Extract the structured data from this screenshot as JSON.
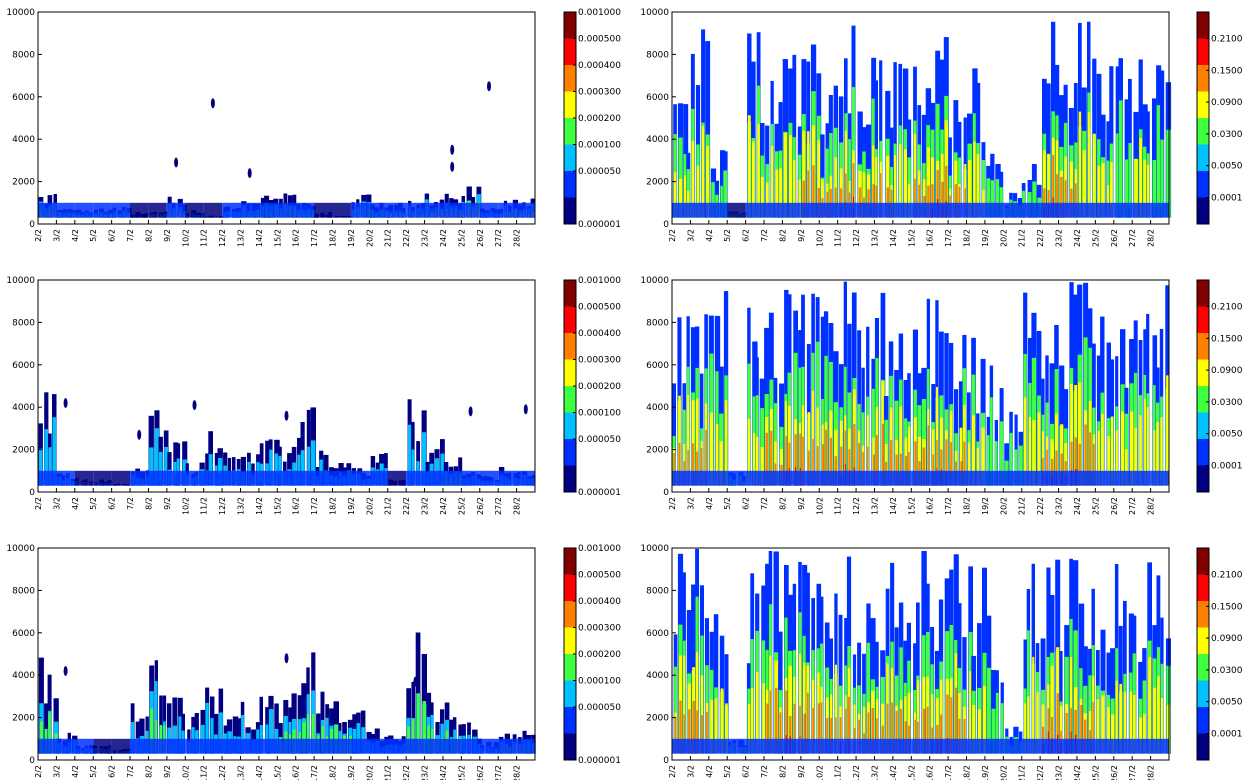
{
  "chart_data": [
    {
      "type": "heatmap",
      "name": "top-left",
      "colorbar": "A",
      "x": [
        "2/2",
        "3/2",
        "4/2",
        "5/2",
        "6/2",
        "7/2",
        "8/2",
        "9/2",
        "10/2",
        "11/2",
        "12/2",
        "13/2",
        "14/2",
        "15/2",
        "16/2",
        "17/2",
        "18/2",
        "19/2",
        "20/2",
        "21/2",
        "22/2",
        "23/2",
        "24/2",
        "25/2",
        "26/2",
        "27/2",
        "28/2"
      ],
      "ylim": [
        0,
        10000
      ],
      "yticks": [
        0,
        2000,
        4000,
        6000,
        8000,
        10000
      ],
      "column_tops": [
        1500,
        900,
        800,
        900,
        800,
        600,
        600,
        1500,
        700,
        400,
        900,
        1300,
        1400,
        1500,
        1400,
        600,
        400,
        1500,
        1000,
        1200,
        1400,
        1500,
        1600,
        2000,
        800,
        1200,
        1300
      ],
      "intensity": [
        3,
        2,
        2,
        2,
        2,
        0,
        2,
        3,
        1,
        0,
        1,
        2,
        2,
        2,
        2,
        0,
        0,
        2,
        2,
        3,
        3,
        3,
        4,
        3,
        1,
        4,
        4
      ],
      "specks": [
        [
          9,
          5700
        ],
        [
          22,
          3500
        ],
        [
          24,
          6500
        ],
        [
          7,
          2900
        ],
        [
          11,
          2400
        ],
        [
          22,
          2700
        ]
      ]
    },
    {
      "type": "heatmap",
      "name": "top-right",
      "colorbar": "B",
      "x": [
        "2/2",
        "3/2",
        "4/2",
        "5/2",
        "6/2",
        "7/2",
        "8/2",
        "9/2",
        "10/2",
        "11/2",
        "12/2",
        "13/2",
        "14/2",
        "15/2",
        "16/2",
        "17/2",
        "18/2",
        "19/2",
        "20/2",
        "21/2",
        "22/2",
        "23/2",
        "24/2",
        "25/2",
        "26/2",
        "27/2",
        "28/2"
      ],
      "ylim": [
        0,
        10000
      ],
      "yticks": [
        0,
        2000,
        4000,
        6000,
        8000,
        10000
      ],
      "column_tops": [
        6000,
        9500,
        3500,
        600,
        9500,
        9000,
        8500,
        9500,
        9000,
        10000,
        9500,
        9000,
        8000,
        9000,
        10000,
        8500,
        7500,
        3500,
        1500,
        3500,
        10000,
        8500,
        10000,
        10000,
        9500,
        8000,
        9500
      ],
      "intensity": [
        2,
        2,
        1,
        1,
        2,
        2,
        2,
        3,
        3,
        4,
        3,
        3,
        2,
        3,
        4,
        3,
        2,
        1,
        1,
        1,
        4,
        3,
        2,
        2,
        1,
        2,
        1
      ],
      "specks": []
    },
    {
      "type": "heatmap",
      "name": "middle-left",
      "colorbar": "A",
      "x": [
        "2/2",
        "3/2",
        "4/2",
        "5/2",
        "6/2",
        "7/2",
        "8/2",
        "9/2",
        "10/2",
        "11/2",
        "12/2",
        "13/2",
        "14/2",
        "15/2",
        "16/2",
        "17/2",
        "18/2",
        "19/2",
        "20/2",
        "21/2",
        "22/2",
        "23/2",
        "24/2",
        "25/2",
        "26/2",
        "27/2",
        "28/2"
      ],
      "ylim": [
        0,
        10000
      ],
      "yticks": [
        0,
        2000,
        4000,
        6000,
        8000,
        10000
      ],
      "column_tops": [
        4800,
        900,
        700,
        600,
        400,
        1200,
        4500,
        2500,
        1500,
        3500,
        2200,
        2000,
        2500,
        2500,
        4800,
        2000,
        1500,
        1200,
        2000,
        600,
        4500,
        2500,
        1800,
        1200,
        800,
        1200,
        1000
      ],
      "intensity": [
        1,
        1,
        1,
        1,
        0,
        1,
        1,
        1,
        1,
        1,
        1,
        1,
        1,
        1,
        1,
        1,
        1,
        1,
        1,
        0,
        1,
        1,
        2,
        1,
        1,
        1,
        1
      ],
      "specks": [
        [
          1,
          4200
        ],
        [
          5,
          2700
        ],
        [
          8,
          4100
        ],
        [
          13,
          3600
        ],
        [
          23,
          3800
        ],
        [
          26,
          3900
        ]
      ]
    },
    {
      "type": "heatmap",
      "name": "middle-right",
      "colorbar": "B",
      "x": [
        "2/2",
        "3/2",
        "4/2",
        "5/2",
        "6/2",
        "7/2",
        "8/2",
        "9/2",
        "10/2",
        "11/2",
        "12/2",
        "13/2",
        "14/2",
        "15/2",
        "16/2",
        "17/2",
        "18/2",
        "19/2",
        "20/2",
        "21/2",
        "22/2",
        "23/2",
        "24/2",
        "25/2",
        "26/2",
        "27/2",
        "28/2"
      ],
      "ylim": [
        0,
        10000
      ],
      "yticks": [
        0,
        2000,
        4000,
        6000,
        8000,
        10000
      ],
      "column_tops": [
        9500,
        10000,
        9500,
        1000,
        9000,
        9500,
        10000,
        9500,
        10000,
        10000,
        10000,
        9500,
        10000,
        9500,
        10000,
        9500,
        7500,
        6000,
        4000,
        10000,
        10000,
        10000,
        10000,
        9500,
        9500,
        9500,
        10000
      ],
      "intensity": [
        3,
        3,
        2,
        1,
        2,
        3,
        4,
        3,
        3,
        4,
        3,
        3,
        3,
        3,
        4,
        3,
        2,
        1,
        1,
        2,
        4,
        4,
        3,
        2,
        2,
        2,
        2
      ],
      "specks": []
    },
    {
      "type": "heatmap",
      "name": "bottom-left",
      "colorbar": "A",
      "x": [
        "2/2",
        "3/2",
        "4/2",
        "5/2",
        "6/2",
        "7/2",
        "8/2",
        "9/2",
        "10/2",
        "11/2",
        "12/2",
        "13/2",
        "14/2",
        "15/2",
        "16/2",
        "17/2",
        "18/2",
        "19/2",
        "20/2",
        "21/2",
        "22/2",
        "23/2",
        "24/2",
        "25/2",
        "26/2",
        "27/2",
        "28/2"
      ],
      "ylim": [
        0,
        10000
      ],
      "yticks": [
        0,
        2000,
        4000,
        6000,
        8000,
        10000
      ],
      "column_tops": [
        5200,
        1500,
        800,
        700,
        600,
        2800,
        5400,
        3000,
        2500,
        3500,
        3000,
        2800,
        3500,
        3200,
        5400,
        3500,
        2800,
        2500,
        1500,
        1200,
        6200,
        3500,
        3000,
        1800,
        900,
        1400,
        1400
      ],
      "intensity": [
        2,
        1,
        1,
        1,
        1,
        1,
        2,
        1,
        1,
        1,
        1,
        1,
        1,
        2,
        2,
        2,
        2,
        1,
        1,
        1,
        2,
        2,
        2,
        1,
        1,
        2,
        2
      ],
      "specks": [
        [
          13,
          4800
        ],
        [
          20,
          3700
        ],
        [
          1,
          4200
        ]
      ]
    },
    {
      "type": "heatmap",
      "name": "bottom-right",
      "colorbar": "B",
      "x": [
        "2/2",
        "3/2",
        "4/2",
        "5/2",
        "6/2",
        "7/2",
        "8/2",
        "9/2",
        "10/2",
        "11/2",
        "12/2",
        "13/2",
        "14/2",
        "15/2",
        "16/2",
        "17/2",
        "18/2",
        "19/2",
        "20/2",
        "21/2",
        "22/2",
        "23/2",
        "24/2",
        "25/2",
        "26/2",
        "27/2",
        "28/2"
      ],
      "ylim": [
        0,
        10000
      ],
      "yticks": [
        0,
        2000,
        4000,
        6000,
        8000,
        10000
      ],
      "column_tops": [
        10000,
        10000,
        9500,
        1000,
        9500,
        10000,
        10000,
        10000,
        10000,
        10000,
        10000,
        10000,
        10000,
        10000,
        10000,
        10000,
        9500,
        7000,
        2000,
        10000,
        10000,
        10000,
        9500,
        9500,
        9500,
        9500,
        9500
      ],
      "intensity": [
        3,
        3,
        2,
        1,
        2,
        3,
        4,
        3,
        3,
        4,
        3,
        3,
        3,
        3,
        4,
        3,
        2,
        1,
        1,
        2,
        4,
        4,
        3,
        2,
        2,
        2,
        2
      ],
      "specks": []
    }
  ],
  "colorbars": {
    "A": {
      "labels": [
        "0.001000",
        "0.000500",
        "0.000400",
        "0.000300",
        "0.000200",
        "0.000100",
        "0.000050",
        "0.000001"
      ],
      "colors": [
        "#800000",
        "#ff0000",
        "#ff8000",
        "#ffff00",
        "#40ff40",
        "#00c0ff",
        "#0030ff",
        "#000080"
      ]
    },
    "B": {
      "labels": [
        "0.2100",
        "0.1500",
        "0.0900",
        "0.0300",
        "0.0050",
        "0.0001"
      ],
      "colors": [
        "#800000",
        "#ff0000",
        "#ff8000",
        "#ffff00",
        "#40ff40",
        "#00c0ff",
        "#0030ff",
        "#000080"
      ]
    }
  },
  "palette": {
    "levels": [
      "#000080",
      "#0030ff",
      "#00c0ff",
      "#40ff40",
      "#ffff00",
      "#ff8000",
      "#ff0000",
      "#800000"
    ]
  }
}
